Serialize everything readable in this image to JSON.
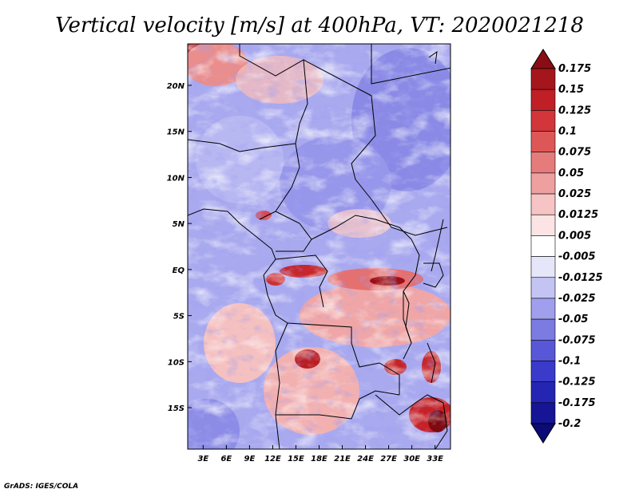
{
  "title": "Vertical velocity [m/s] at 400hPa, VT: 2020021218",
  "credit": "GrADS: IGES/COLA",
  "map": {
    "lon_range": [
      1,
      35
    ],
    "lat_range": [
      -19.5,
      24.5
    ],
    "lon_ticks": [
      "3E",
      "6E",
      "9E",
      "12E",
      "15E",
      "18E",
      "21E",
      "24E",
      "27E",
      "30E",
      "33E"
    ],
    "lat_ticks": [
      "20N",
      "15N",
      "10N",
      "5N",
      "EQ",
      "5S",
      "10S",
      "15S"
    ]
  },
  "colorbar": {
    "labels": [
      "0.175",
      "0.15",
      "0.125",
      "0.1",
      "0.075",
      "0.05",
      "0.025",
      "0.0125",
      "0.005",
      "-0.005",
      "-0.0125",
      "-0.025",
      "-0.05",
      "-0.075",
      "-0.1",
      "-0.125",
      "-0.175",
      "-0.2"
    ],
    "colors": [
      "#8b0d14",
      "#a5151c",
      "#bf1f25",
      "#d2353a",
      "#de5757",
      "#e57b7b",
      "#ee9f9f",
      "#f6c4c4",
      "#fce4e4",
      "#ffffff",
      "#e6e6fa",
      "#c4c4f4",
      "#9f9fee",
      "#7b7be2",
      "#5757d7",
      "#3a3acb",
      "#2525b3",
      "#151595",
      "#0b0b78"
    ]
  }
}
